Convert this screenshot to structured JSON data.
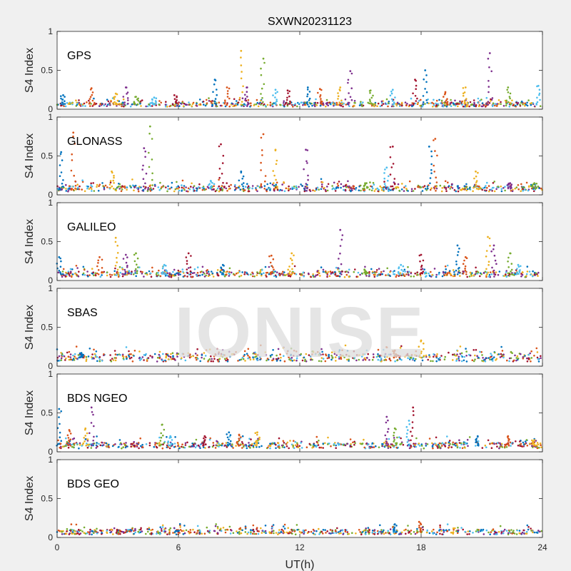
{
  "figure": {
    "title": "SXWN20231123",
    "watermark": "IONISE",
    "xlabel": "UT(h)",
    "ylabel": "S4 Index",
    "xticks": [
      "0",
      "6",
      "12",
      "18",
      "24"
    ],
    "yticks": [
      "0",
      "0.5",
      "1"
    ],
    "xlim": [
      0,
      24
    ],
    "ylim": [
      0,
      1
    ]
  },
  "colors": {
    "series": [
      "#0072BD",
      "#D95319",
      "#EDB120",
      "#7E2F8E",
      "#77AC30",
      "#4DBEEE",
      "#A2142F"
    ],
    "axes_bg": "#ffffff",
    "figure_bg": "#f0f0f0"
  },
  "chart_data": [
    {
      "type": "scatter",
      "label": "GPS",
      "xlim": [
        0,
        24
      ],
      "ylim": [
        0,
        1
      ],
      "baseline": 0.06,
      "spikes": [
        [
          0.3,
          0.18
        ],
        [
          1.7,
          0.27
        ],
        [
          2.9,
          0.2
        ],
        [
          3.4,
          0.28
        ],
        [
          3.9,
          0.16
        ],
        [
          4.8,
          0.15
        ],
        [
          5.8,
          0.18
        ],
        [
          7.8,
          0.38
        ],
        [
          8.4,
          0.28
        ],
        [
          9.1,
          0.75
        ],
        [
          9.4,
          0.28
        ],
        [
          10.2,
          0.65
        ],
        [
          10.8,
          0.25
        ],
        [
          11.4,
          0.24
        ],
        [
          12.4,
          0.28
        ],
        [
          13.0,
          0.26
        ],
        [
          14.0,
          0.28
        ],
        [
          14.5,
          0.49
        ],
        [
          15.5,
          0.24
        ],
        [
          16.6,
          0.25
        ],
        [
          17.7,
          0.38
        ],
        [
          18.2,
          0.5
        ],
        [
          19.2,
          0.22
        ],
        [
          20.2,
          0.28
        ],
        [
          21.4,
          0.72
        ],
        [
          22.3,
          0.28
        ],
        [
          23.8,
          0.3
        ]
      ]
    },
    {
      "type": "scatter",
      "label": "GLONASS",
      "xlim": [
        0,
        24
      ],
      "ylim": [
        0,
        1
      ],
      "baseline": 0.08,
      "spikes": [
        [
          0.2,
          0.55
        ],
        [
          0.8,
          0.8
        ],
        [
          2.7,
          0.3
        ],
        [
          4.3,
          0.6
        ],
        [
          4.6,
          0.88
        ],
        [
          7.6,
          0.18
        ],
        [
          8.1,
          0.65
        ],
        [
          9.1,
          0.3
        ],
        [
          10.2,
          0.78
        ],
        [
          10.8,
          0.58
        ],
        [
          12.3,
          0.58
        ],
        [
          15.3,
          0.15
        ],
        [
          16.3,
          0.35
        ],
        [
          16.6,
          0.62
        ],
        [
          18.4,
          0.62
        ],
        [
          18.7,
          0.72
        ],
        [
          20.7,
          0.3
        ],
        [
          22.4,
          0.15
        ],
        [
          23.6,
          0.15
        ]
      ]
    },
    {
      "type": "scatter",
      "label": "GALILEO",
      "xlim": [
        0,
        24
      ],
      "ylim": [
        0,
        1
      ],
      "baseline": 0.08,
      "spikes": [
        [
          0.1,
          0.3
        ],
        [
          2.1,
          0.3
        ],
        [
          2.9,
          0.55
        ],
        [
          3.4,
          0.33
        ],
        [
          3.9,
          0.35
        ],
        [
          5.3,
          0.2
        ],
        [
          6.5,
          0.35
        ],
        [
          8.2,
          0.2
        ],
        [
          10.6,
          0.32
        ],
        [
          11.6,
          0.35
        ],
        [
          14.0,
          0.65
        ],
        [
          15.2,
          0.14
        ],
        [
          17.0,
          0.2
        ],
        [
          18.0,
          0.33
        ],
        [
          19.8,
          0.45
        ],
        [
          20.2,
          0.3
        ],
        [
          21.3,
          0.56
        ],
        [
          21.6,
          0.45
        ],
        [
          22.4,
          0.35
        ],
        [
          22.8,
          0.2
        ]
      ]
    },
    {
      "type": "scatter",
      "label": "SBAS",
      "xlim": [
        0,
        24
      ],
      "ylim": [
        0,
        1
      ],
      "baseline": 0.11,
      "spikes": [
        [
          1.2,
          0.17
        ],
        [
          16.7,
          0.2
        ],
        [
          18.0,
          0.33
        ]
      ]
    },
    {
      "type": "scatter",
      "label": "BDS NGEO",
      "xlim": [
        0,
        24
      ],
      "ylim": [
        0,
        1
      ],
      "baseline": 0.08,
      "spikes": [
        [
          0.1,
          0.55
        ],
        [
          0.6,
          0.28
        ],
        [
          1.4,
          0.3
        ],
        [
          1.7,
          0.57
        ],
        [
          5.2,
          0.35
        ],
        [
          5.6,
          0.2
        ],
        [
          7.3,
          0.2
        ],
        [
          8.5,
          0.25
        ],
        [
          9.0,
          0.22
        ],
        [
          9.9,
          0.25
        ],
        [
          16.3,
          0.45
        ],
        [
          16.7,
          0.3
        ],
        [
          17.4,
          0.4
        ],
        [
          17.6,
          0.57
        ],
        [
          20.8,
          0.2
        ],
        [
          22.3,
          0.2
        ],
        [
          23.6,
          0.15
        ]
      ]
    },
    {
      "type": "scatter",
      "label": "BDS GEO",
      "xlim": [
        0,
        24
      ],
      "ylim": [
        0,
        1
      ],
      "baseline": 0.07,
      "spikes": [
        [
          16.7,
          0.17
        ],
        [
          17.9,
          0.2
        ]
      ]
    }
  ]
}
